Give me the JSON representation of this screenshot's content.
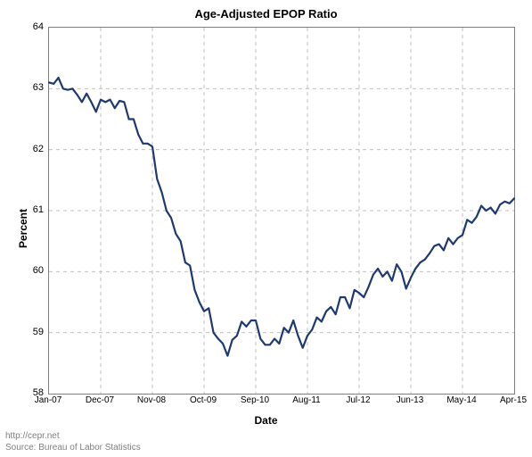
{
  "chart": {
    "type": "line",
    "title": "Age-Adjusted EPOP Ratio",
    "xlabel": "Date",
    "ylabel": "Percent",
    "background_color": "#ffffff",
    "border_color": "#808080",
    "grid_color": "#c0c0c0",
    "grid_dash": "4 4",
    "line_color": "#1f3a71",
    "line_width": 2.2,
    "title_fontsize": 13,
    "label_fontsize": 12,
    "tick_fontsize": 11,
    "ylim": [
      58,
      64
    ],
    "yticks": [
      58,
      59,
      60,
      61,
      62,
      63,
      64
    ],
    "xtick_labels": [
      "Jan-07",
      "Dec-07",
      "Nov-08",
      "Oct-09",
      "Sep-10",
      "Aug-11",
      "Jul-12",
      "Jun-13",
      "May-14",
      "Apr-15"
    ],
    "xtick_indices": [
      0,
      11,
      22,
      33,
      44,
      55,
      66,
      77,
      88,
      99
    ],
    "n_points": 100,
    "values": [
      63.1,
      63.08,
      63.18,
      63.0,
      62.98,
      63.0,
      62.9,
      62.78,
      62.92,
      62.78,
      62.62,
      62.82,
      62.78,
      62.82,
      62.68,
      62.8,
      62.78,
      62.5,
      62.5,
      62.25,
      62.1,
      62.1,
      62.05,
      61.52,
      61.3,
      61.0,
      60.88,
      60.62,
      60.5,
      60.15,
      60.1,
      59.7,
      59.5,
      59.35,
      59.4,
      59.0,
      58.9,
      58.82,
      58.62,
      58.88,
      58.95,
      59.18,
      59.1,
      59.2,
      59.2,
      58.9,
      58.8,
      58.8,
      58.9,
      58.82,
      59.08,
      59.0,
      59.2,
      58.95,
      58.75,
      58.95,
      59.05,
      59.25,
      59.18,
      59.35,
      59.42,
      59.3,
      59.58,
      59.58,
      59.4,
      59.7,
      59.65,
      59.58,
      59.75,
      59.95,
      60.05,
      59.92,
      60.0,
      59.85,
      60.12,
      60.0,
      59.72,
      59.9,
      60.05,
      60.15,
      60.2,
      60.3,
      60.42,
      60.45,
      60.35,
      60.55,
      60.45,
      60.55,
      60.6,
      60.85,
      60.8,
      60.9,
      61.08,
      61.0,
      61.05,
      60.95,
      61.1,
      61.15,
      61.12,
      61.2
    ]
  },
  "footer": {
    "url": "http://cepr.net",
    "source": "Source: Bureau of Labor Statistics"
  }
}
